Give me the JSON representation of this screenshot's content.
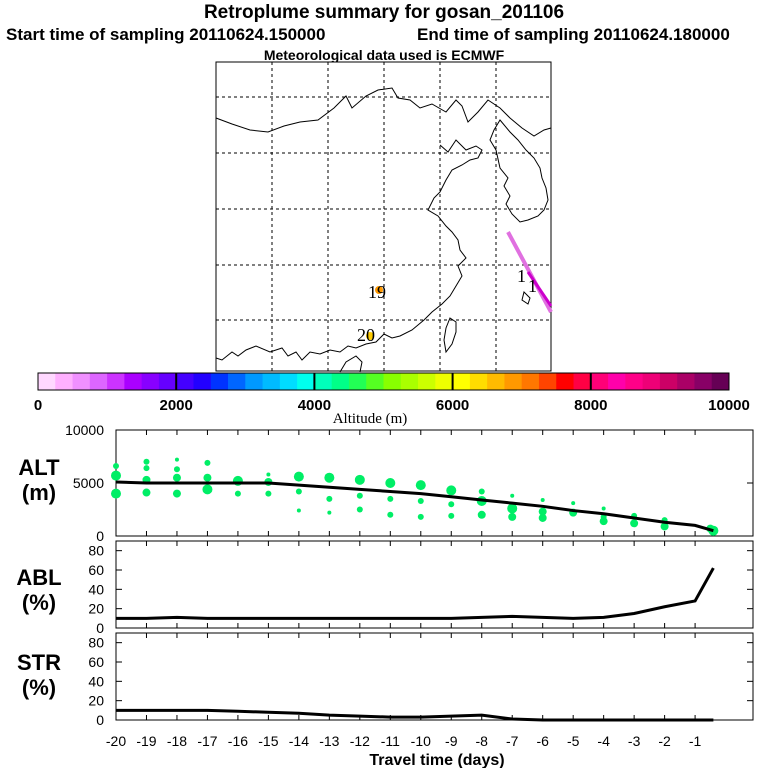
{
  "header": {
    "title": "Retroplume summary for gosan_201106",
    "start_label": "Start time of sampling 20110624.150000",
    "end_label": "End time of sampling 20110624.180000",
    "met_label": "Meteorological data used is ECMWF"
  },
  "map": {
    "markers": [
      {
        "label": "19",
        "color": "#ff9900"
      },
      {
        "label": "20",
        "color": "#ffcc00"
      },
      {
        "label": "1",
        "color": "#ff66ff"
      },
      {
        "label": "1",
        "color": "#ff33cc"
      }
    ],
    "trajectory_color": "#e070e0"
  },
  "colorbar": {
    "ticks": [
      "0",
      "2000",
      "4000",
      "6000",
      "8000",
      "10000"
    ],
    "label": "Altitude (m)",
    "colors": [
      "#ffd8ff",
      "#ffb0ff",
      "#f090ff",
      "#dd66ff",
      "#cc33ff",
      "#aa00ff",
      "#8800ff",
      "#6600ff",
      "#4400ff",
      "#2200ff",
      "#0033ff",
      "#0066ff",
      "#0099ff",
      "#00bbff",
      "#00ddff",
      "#00ffee",
      "#00ffbb",
      "#00ff88",
      "#22ff55",
      "#55ff22",
      "#88ff00",
      "#aaff00",
      "#ccff00",
      "#eeff00",
      "#ffff00",
      "#ffdd00",
      "#ffbb00",
      "#ff9900",
      "#ff7700",
      "#ff4400",
      "#ff0000",
      "#ff0044",
      "#ff0077",
      "#ff00aa",
      "#ff0088",
      "#ee0077",
      "#cc0066",
      "#aa0066",
      "#880066",
      "#660055"
    ]
  },
  "chart_data": [
    {
      "type": "scatter",
      "name": "ALT",
      "ylabel": "ALT\n(m)",
      "ylim": [
        0,
        10000
      ],
      "yticks": [
        "10000",
        "5000",
        "0"
      ],
      "mean_line": {
        "x": [
          -20,
          -19,
          -18,
          -17,
          -16,
          -15,
          -14,
          -13,
          -12,
          -11,
          -10,
          -9,
          -8,
          -7,
          -6,
          -5,
          -4,
          -3,
          -2,
          -1,
          -0.4
        ],
        "y": [
          5100,
          5000,
          5000,
          5000,
          5000,
          5000,
          4800,
          4600,
          4400,
          4200,
          4000,
          3700,
          3400,
          3100,
          2800,
          2400,
          2100,
          1700,
          1300,
          1000,
          500
        ]
      },
      "points": [
        {
          "x": -20,
          "y": 6600,
          "s": 3
        },
        {
          "x": -20,
          "y": 5700,
          "s": 5
        },
        {
          "x": -20,
          "y": 4000,
          "s": 5
        },
        {
          "x": -19,
          "y": 7000,
          "s": 3
        },
        {
          "x": -19,
          "y": 6400,
          "s": 3
        },
        {
          "x": -19,
          "y": 5300,
          "s": 4
        },
        {
          "x": -19,
          "y": 4100,
          "s": 4
        },
        {
          "x": -18,
          "y": 7200,
          "s": 2
        },
        {
          "x": -18,
          "y": 6300,
          "s": 3
        },
        {
          "x": -18,
          "y": 5500,
          "s": 4
        },
        {
          "x": -18,
          "y": 4000,
          "s": 4
        },
        {
          "x": -17,
          "y": 6900,
          "s": 3
        },
        {
          "x": -17,
          "y": 5500,
          "s": 4
        },
        {
          "x": -17,
          "y": 4400,
          "s": 5
        },
        {
          "x": -16,
          "y": 5200,
          "s": 5
        },
        {
          "x": -16,
          "y": 4000,
          "s": 3
        },
        {
          "x": -15,
          "y": 5800,
          "s": 2
        },
        {
          "x": -15,
          "y": 5100,
          "s": 4
        },
        {
          "x": -15,
          "y": 4000,
          "s": 3
        },
        {
          "x": -14,
          "y": 5600,
          "s": 5
        },
        {
          "x": -14,
          "y": 4200,
          "s": 3
        },
        {
          "x": -14,
          "y": 2400,
          "s": 2
        },
        {
          "x": -13,
          "y": 5500,
          "s": 5
        },
        {
          "x": -13,
          "y": 3500,
          "s": 3
        },
        {
          "x": -13,
          "y": 2200,
          "s": 2
        },
        {
          "x": -12,
          "y": 5300,
          "s": 5
        },
        {
          "x": -12,
          "y": 3800,
          "s": 3
        },
        {
          "x": -12,
          "y": 2500,
          "s": 3
        },
        {
          "x": -11,
          "y": 5000,
          "s": 5
        },
        {
          "x": -11,
          "y": 3500,
          "s": 3
        },
        {
          "x": -11,
          "y": 2000,
          "s": 3
        },
        {
          "x": -10,
          "y": 4800,
          "s": 5
        },
        {
          "x": -10,
          "y": 3300,
          "s": 3
        },
        {
          "x": -10,
          "y": 1800,
          "s": 3
        },
        {
          "x": -9,
          "y": 4300,
          "s": 5
        },
        {
          "x": -9,
          "y": 3000,
          "s": 3
        },
        {
          "x": -9,
          "y": 1900,
          "s": 3
        },
        {
          "x": -8,
          "y": 4200,
          "s": 3
        },
        {
          "x": -8,
          "y": 3300,
          "s": 5
        },
        {
          "x": -8,
          "y": 2000,
          "s": 4
        },
        {
          "x": -7,
          "y": 3800,
          "s": 2
        },
        {
          "x": -7,
          "y": 2600,
          "s": 5
        },
        {
          "x": -7,
          "y": 1800,
          "s": 4
        },
        {
          "x": -6,
          "y": 3400,
          "s": 2
        },
        {
          "x": -6,
          "y": 2300,
          "s": 4
        },
        {
          "x": -6,
          "y": 1700,
          "s": 4
        },
        {
          "x": -5,
          "y": 3100,
          "s": 2
        },
        {
          "x": -5,
          "y": 2200,
          "s": 4
        },
        {
          "x": -4,
          "y": 2600,
          "s": 2
        },
        {
          "x": -4,
          "y": 1800,
          "s": 3
        },
        {
          "x": -4,
          "y": 1400,
          "s": 4
        },
        {
          "x": -3,
          "y": 1900,
          "s": 3
        },
        {
          "x": -3,
          "y": 1200,
          "s": 4
        },
        {
          "x": -2,
          "y": 1500,
          "s": 3
        },
        {
          "x": -2,
          "y": 900,
          "s": 4
        },
        {
          "x": -0.5,
          "y": 700,
          "s": 4
        },
        {
          "x": -0.4,
          "y": 500,
          "s": 5
        }
      ]
    },
    {
      "type": "line",
      "name": "ABL",
      "ylabel": "ABL\n(%)",
      "ylim": [
        0,
        90
      ],
      "yticks": [
        "80",
        "60",
        "40",
        "20",
        "0"
      ],
      "x": [
        -20,
        -19,
        -18,
        -17,
        -16,
        -15,
        -14,
        -13,
        -12,
        -11,
        -10,
        -9,
        -8,
        -7,
        -6,
        -5,
        -4,
        -3,
        -2,
        -1,
        -0.4
      ],
      "y": [
        10,
        10,
        11,
        10,
        10,
        10,
        10,
        10,
        10,
        10,
        10,
        10,
        11,
        12,
        11,
        10,
        11,
        15,
        22,
        28,
        62
      ]
    },
    {
      "type": "line",
      "name": "STR",
      "ylabel": "STR\n(%)",
      "ylim": [
        0,
        90
      ],
      "yticks": [
        "80",
        "60",
        "40",
        "20",
        "0"
      ],
      "x": [
        -20,
        -19,
        -18,
        -17,
        -16,
        -15,
        -14,
        -13,
        -12,
        -11,
        -10,
        -9,
        -8,
        -7,
        -6,
        -5,
        -4,
        -3,
        -2,
        -1,
        -0.4
      ],
      "y": [
        10,
        10,
        10,
        10,
        9,
        8,
        7,
        5,
        4,
        3,
        3,
        4,
        5,
        1,
        0,
        0,
        0,
        0,
        0,
        0,
        0
      ]
    }
  ],
  "xaxis": {
    "ticks": [
      "-20",
      "-19",
      "-18",
      "-17",
      "-16",
      "-15",
      "-14",
      "-13",
      "-12",
      "-11",
      "-10",
      "-9",
      "-8",
      "-7",
      "-6",
      "-5",
      "-4",
      "-3",
      "-2",
      "-1"
    ],
    "label": "Travel time (days)",
    "xlim": [
      -20,
      0.9
    ]
  },
  "point_color": "#00ee66",
  "line_color": "#000000"
}
